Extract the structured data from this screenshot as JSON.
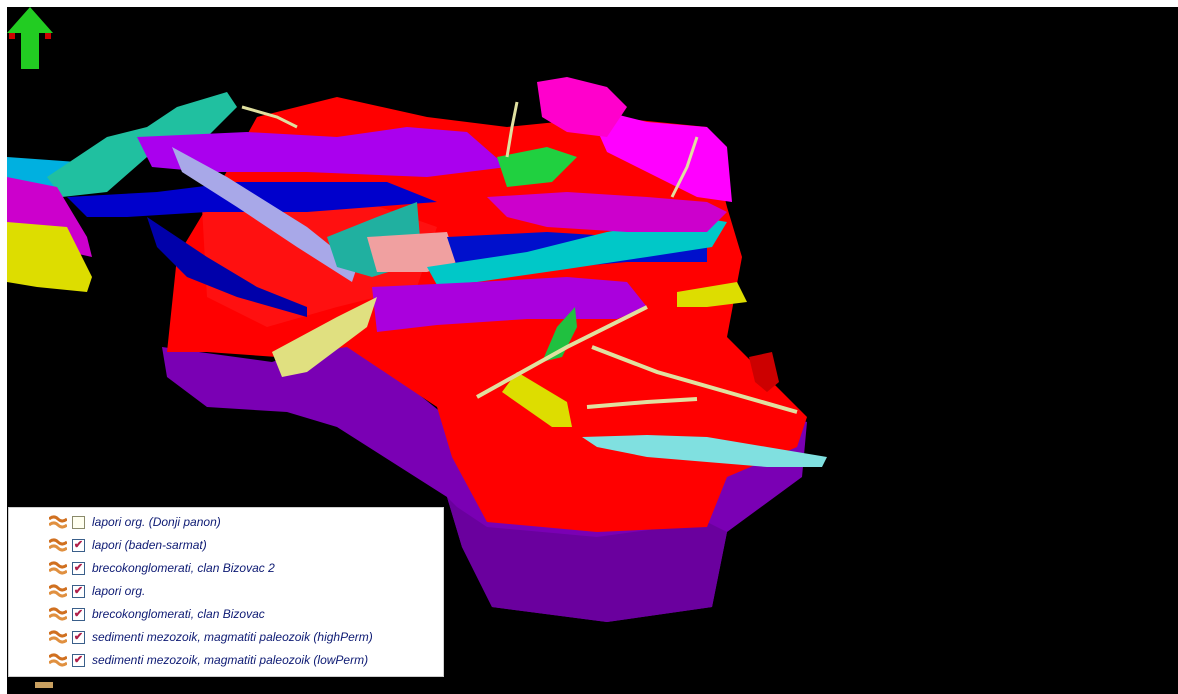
{
  "viewport": {
    "background": "#000000",
    "legend": {
      "layers": [
        {
          "label": "lapori org. (Donji panon)",
          "checked": false,
          "icon": "horizon-layer-icon"
        },
        {
          "label": "lapori (baden-sarmat)",
          "checked": true,
          "icon": "horizon-layer-icon"
        },
        {
          "label": "brecokonglomerati, clan Bizovac 2",
          "checked": true,
          "icon": "horizon-layer-icon"
        },
        {
          "label": "lapori org.",
          "checked": true,
          "icon": "horizon-layer-icon"
        },
        {
          "label": "brecokonglomerati,  clan Bizovac",
          "checked": true,
          "icon": "horizon-layer-icon"
        },
        {
          "label": "sedimenti mezozoik, magmatiti paleozoik (highPerm)",
          "checked": true,
          "icon": "horizon-layer-icon"
        },
        {
          "label": "sedimenti mezozoik, magmatiti paleozoik (lowPerm)",
          "checked": true,
          "icon": "horizon-layer-icon"
        }
      ]
    },
    "orientation_arrow": {
      "icon": "north-arrow-icon",
      "color": "#22cc22"
    },
    "colors": {
      "horizon": "#ff0000",
      "basement": "#7a00b4",
      "faults": [
        "#00c8c8",
        "#aa00ee",
        "#0000cc",
        "#e0e080",
        "#20b0a0",
        "#ff00ff",
        "#dddd00",
        "#a0a0e0"
      ]
    }
  }
}
